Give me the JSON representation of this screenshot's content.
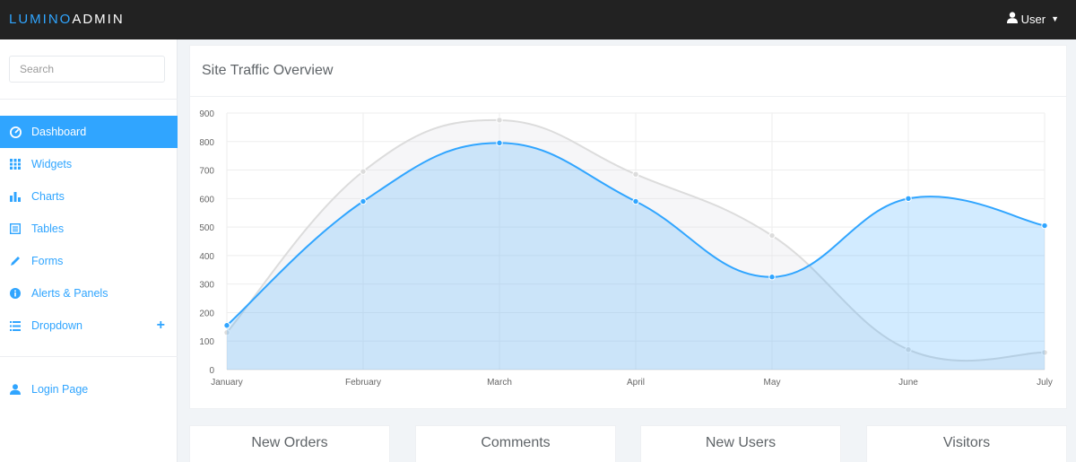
{
  "brand": {
    "part1": "LUMINO",
    "part2": "ADMIN"
  },
  "user_menu": {
    "label": "User"
  },
  "sidebar": {
    "search_placeholder": "Search",
    "items": [
      {
        "label": "Dashboard",
        "icon": "dashboard-icon"
      },
      {
        "label": "Widgets",
        "icon": "grid-icon"
      },
      {
        "label": "Charts",
        "icon": "bar-chart-icon"
      },
      {
        "label": "Tables",
        "icon": "table-icon"
      },
      {
        "label": "Forms",
        "icon": "pencil-icon"
      },
      {
        "label": "Alerts & Panels",
        "icon": "info-icon"
      },
      {
        "label": "Dropdown",
        "icon": "list-icon"
      }
    ],
    "login": {
      "label": "Login Page",
      "icon": "user-icon"
    }
  },
  "chart_panel": {
    "title": "Site Traffic Overview"
  },
  "chart_data": {
    "type": "area",
    "categories": [
      "January",
      "February",
      "March",
      "April",
      "May",
      "June",
      "July"
    ],
    "ylim": [
      0,
      900
    ],
    "yticks": [
      0,
      100,
      200,
      300,
      400,
      500,
      600,
      700,
      800,
      900
    ],
    "grid": true,
    "series": [
      {
        "values": [
          130,
          695,
          875,
          685,
          470,
          70,
          60
        ],
        "color": "#dcdcdc"
      },
      {
        "values": [
          155,
          590,
          795,
          590,
          325,
          600,
          505
        ],
        "color": "#30a5ff"
      }
    ]
  },
  "stats": [
    {
      "label": "New Orders"
    },
    {
      "label": "Comments"
    },
    {
      "label": "New Users"
    },
    {
      "label": "Visitors"
    }
  ]
}
